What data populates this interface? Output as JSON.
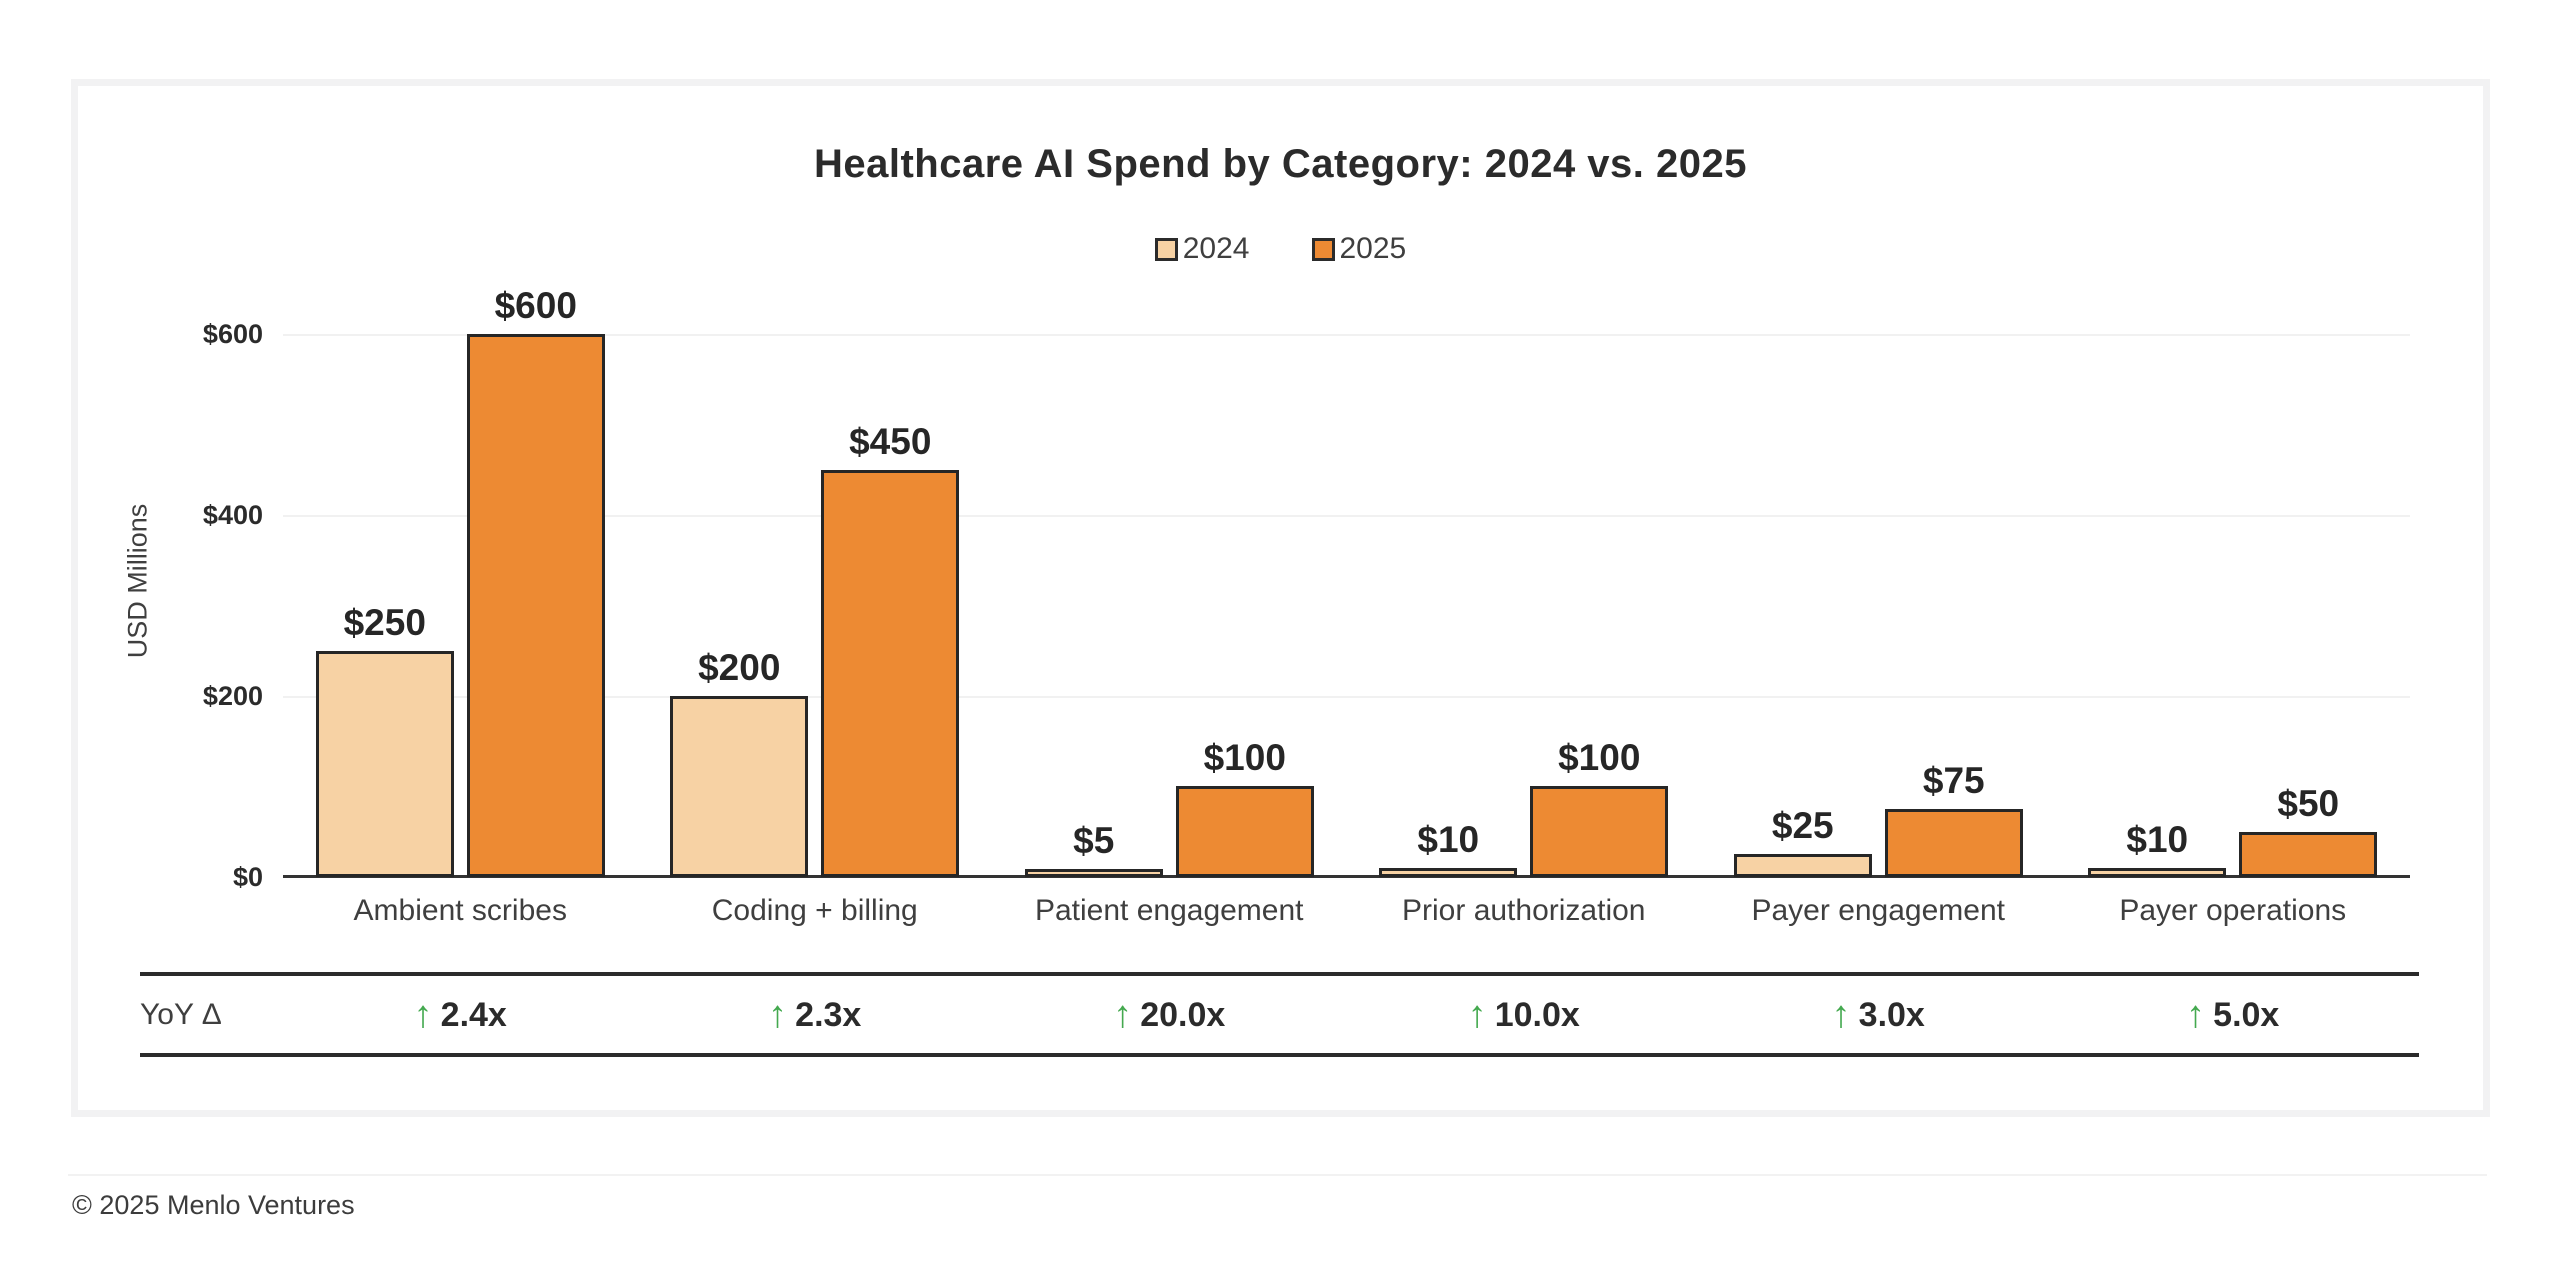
{
  "chart_data": {
    "type": "bar",
    "title": "Healthcare AI Spend by Category: 2024 vs. 2025",
    "xlabel": "",
    "ylabel": "USD Millions",
    "ylim": [
      0,
      650
    ],
    "yticks": [
      0,
      200,
      400,
      600
    ],
    "ytick_labels": [
      "$0",
      "$200",
      "$400",
      "$600"
    ],
    "grid": "horizontal",
    "legend_position": "top-center",
    "categories": [
      "Ambient scribes",
      "Coding + billing",
      "Patient engagement",
      "Prior authorization",
      "Payer engagement",
      "Payer operations"
    ],
    "series": [
      {
        "name": "2024",
        "color": "#F7D2A4",
        "values": [
          250,
          200,
          5,
          10,
          25,
          10
        ],
        "labels": [
          "$250",
          "$200",
          "$5",
          "$10",
          "$25",
          "$10"
        ]
      },
      {
        "name": "2025",
        "color": "#ED8A33",
        "values": [
          600,
          450,
          100,
          100,
          75,
          50
        ],
        "labels": [
          "$600",
          "$450",
          "$100",
          "$100",
          "$75",
          "$50"
        ]
      }
    ]
  },
  "yoy": {
    "label": "YoY Δ",
    "arrow": "↑",
    "arrow_color": "#44A94F",
    "values": [
      "2.4x",
      "2.3x",
      "20.0x",
      "10.0x",
      "3.0x",
      "5.0x"
    ]
  },
  "footer": {
    "copyright": "© 2025 Menlo Ventures"
  },
  "colors": {
    "bar_2024": "#F7D2A4",
    "bar_2025": "#ED8A33",
    "bar_border": "#262626",
    "green_arrow": "#44A94F",
    "gridline": "#F1F1F1",
    "card_border": "#F2F2F3",
    "text_primary": "#2B2B2B",
    "text_secondary": "#3F3F3F"
  }
}
